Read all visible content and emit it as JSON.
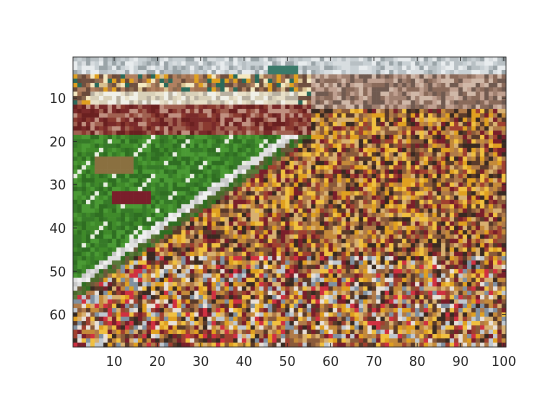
{
  "image_panel": {
    "content": "pixelated photo of a football stadium: green field with yard lines at left, crowded stands in maroon and gold",
    "x_ticks": [
      10,
      20,
      30,
      40,
      50,
      60,
      70,
      80,
      90,
      100
    ],
    "y_ticks": [
      10,
      20,
      30,
      40,
      50,
      60
    ],
    "x_range": [
      0.5,
      100.5
    ],
    "y_range": [
      0.5,
      67.5
    ],
    "y_direction": "top-down",
    "colors": {
      "field_green": "#3f8a2a",
      "field_dark": "#2f6e22",
      "maroon": "#7a1f2b",
      "gold": "#e0a020",
      "crowd_brown": "#8a5a3a",
      "sky": "#d8dde0",
      "axis": "#262626"
    }
  }
}
